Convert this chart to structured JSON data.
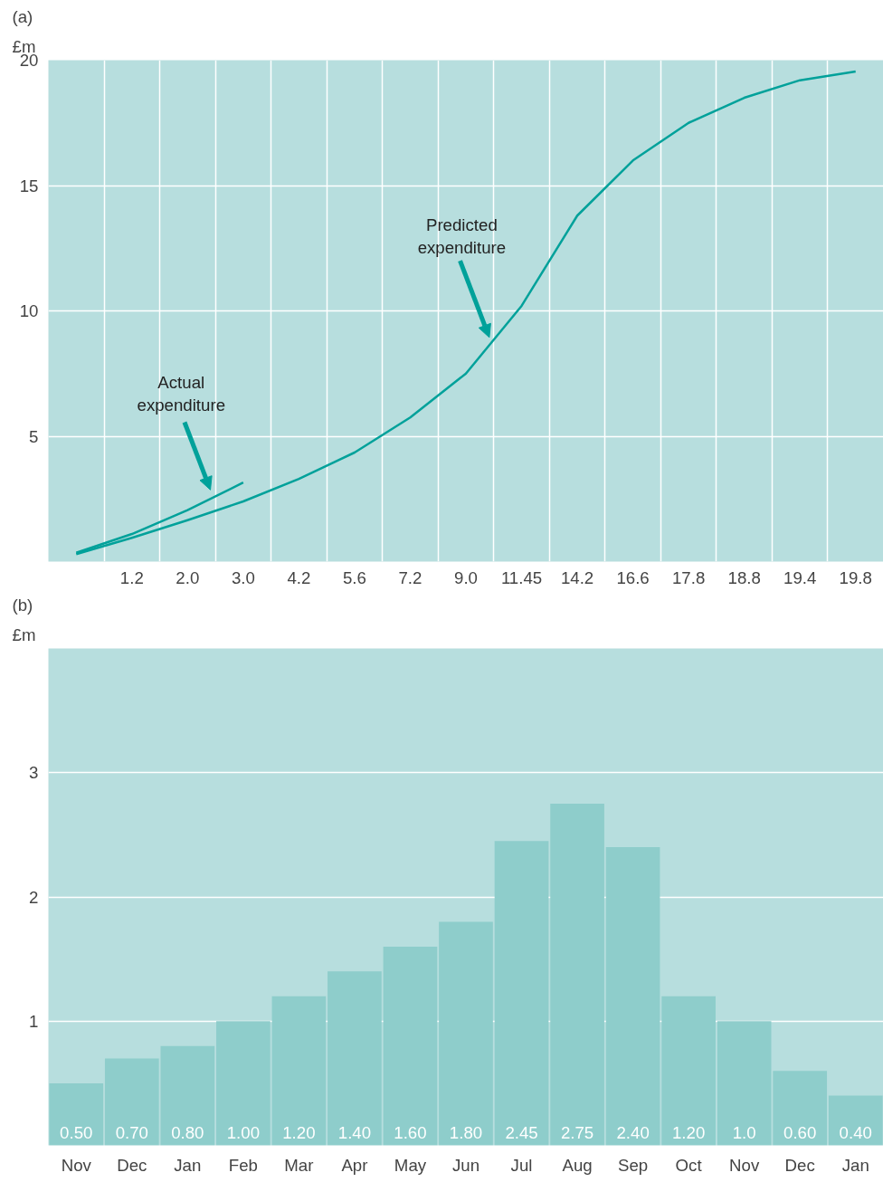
{
  "chart_data": [
    {
      "type": "line",
      "title": "(a)",
      "ylabel": "£m",
      "ylim": [
        0,
        20
      ],
      "yticks": [
        5,
        10,
        15,
        20
      ],
      "categories": [
        null,
        "1.2",
        "2.0",
        "3.0",
        "4.2",
        "5.6",
        "7.2",
        "9.0",
        "11.45",
        "14.2",
        "16.6",
        "17.8",
        "18.8",
        "19.4",
        "19.8"
      ],
      "grid": true,
      "marker": "none",
      "line_style": "solid",
      "series": [
        {
          "color": "#00a19a",
          "values": [
            0.3,
            0.95,
            1.65,
            2.4,
            3.3,
            4.35,
            5.75,
            7.5,
            10.2,
            13.8,
            16.0,
            17.5,
            18.5,
            19.2,
            19.55
          ]
        },
        {
          "color": "#00a19a",
          "values": [
            0.35,
            1.1,
            2.05,
            3.15,
            null,
            null,
            null,
            null,
            null,
            null,
            null,
            null,
            null,
            null,
            null
          ]
        }
      ],
      "annotations": [
        "Predicted expenditure",
        "Actual expenditure"
      ]
    },
    {
      "type": "bar",
      "title": "(b)",
      "ylabel": "£m",
      "ylim": [
        0,
        4
      ],
      "yticks": [
        1,
        2,
        3
      ],
      "grid": "y",
      "color": "#8ecdcb",
      "categories": [
        "Nov",
        "Dec",
        "Jan",
        "Feb",
        "Mar",
        "Apr",
        "May",
        "Jun",
        "Jul",
        "Aug",
        "Sep",
        "Oct",
        "Nov",
        "Dec",
        "Jan"
      ],
      "values": [
        0.5,
        0.7,
        0.8,
        1.0,
        1.2,
        1.4,
        1.6,
        1.8,
        2.45,
        2.75,
        2.4,
        1.2,
        1.0,
        0.6,
        0.4
      ],
      "value_labels": [
        "0.50",
        "0.70",
        "0.80",
        "1.00",
        "1.20",
        "1.40",
        "1.60",
        "1.80",
        "2.45",
        "2.75",
        "2.40",
        "1.20",
        "1.0",
        "0.60",
        "0.40"
      ]
    }
  ]
}
